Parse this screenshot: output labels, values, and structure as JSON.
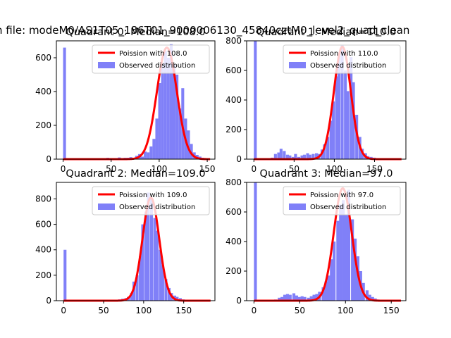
{
  "figure": {
    "suptitle": "n file: modeM0/AS1T05_186T01_9000006130_45840cztM0_level2_quad_clean"
  },
  "chart_data": [
    {
      "type": "bar",
      "title": "Quadrant 0: Median=108.0",
      "xlim": [
        -7,
        158
      ],
      "ylim": [
        0,
        700
      ],
      "xticks": [
        0,
        50,
        100,
        150
      ],
      "yticks": [
        0,
        200,
        400,
        600
      ],
      "bin_width": 3,
      "median": 108.0,
      "series": [
        {
          "name": "Observed distribution",
          "color": "#8080f8",
          "bins": [
            [
              0,
              660
            ],
            [
              39,
              5
            ],
            [
              45,
              8
            ],
            [
              51,
              5
            ],
            [
              57,
              10
            ],
            [
              63,
              8
            ],
            [
              66,
              8
            ],
            [
              69,
              12
            ],
            [
              72,
              8
            ],
            [
              75,
              20
            ],
            [
              78,
              30
            ],
            [
              81,
              15
            ],
            [
              84,
              45
            ],
            [
              87,
              40
            ],
            [
              90,
              75
            ],
            [
              93,
              120
            ],
            [
              96,
              240
            ],
            [
              99,
              450
            ],
            [
              102,
              570
            ],
            [
              105,
              640
            ],
            [
              108,
              600
            ],
            [
              111,
              680
            ],
            [
              114,
              560
            ],
            [
              117,
              500
            ],
            [
              120,
              300
            ],
            [
              123,
              420
            ],
            [
              126,
              240
            ],
            [
              129,
              170
            ],
            [
              132,
              90
            ],
            [
              135,
              40
            ],
            [
              138,
              25
            ],
            [
              141,
              15
            ],
            [
              144,
              8
            ],
            [
              147,
              5
            ],
            [
              150,
              3
            ],
            [
              153,
              2
            ]
          ]
        },
        {
          "name": "Poission with 108.0",
          "color": "#ff0000",
          "type": "line",
          "peak": 660,
          "sigma": 10.4
        }
      ],
      "legend": "top-right"
    },
    {
      "type": "bar",
      "title": "Quadrant 1: Median=110.0",
      "xlim": [
        -9,
        189
      ],
      "ylim": [
        0,
        800
      ],
      "xticks": [
        0,
        50,
        100,
        150
      ],
      "yticks": [
        0,
        200,
        400,
        600,
        800
      ],
      "bin_width": 3.6,
      "median": 110.0,
      "series": [
        {
          "name": "Observed distribution",
          "color": "#8080f8",
          "bins": [
            [
              0,
              800
            ],
            [
              21,
              10
            ],
            [
              25,
              35
            ],
            [
              29,
              45
            ],
            [
              32,
              70
            ],
            [
              36,
              55
            ],
            [
              40,
              30
            ],
            [
              43,
              25
            ],
            [
              47,
              15
            ],
            [
              50,
              35
            ],
            [
              54,
              15
            ],
            [
              58,
              25
            ],
            [
              61,
              30
            ],
            [
              65,
              40
            ],
            [
              68,
              30
            ],
            [
              72,
              35
            ],
            [
              76,
              40
            ],
            [
              79,
              35
            ],
            [
              83,
              65
            ],
            [
              86,
              100
            ],
            [
              90,
              150
            ],
            [
              94,
              260
            ],
            [
              97,
              390
            ],
            [
              101,
              560
            ],
            [
              104,
              700
            ],
            [
              108,
              770
            ],
            [
              112,
              600
            ],
            [
              115,
              460
            ],
            [
              119,
              690
            ],
            [
              122,
              520
            ],
            [
              126,
              300
            ],
            [
              130,
              150
            ],
            [
              133,
              70
            ],
            [
              137,
              40
            ],
            [
              140,
              20
            ],
            [
              144,
              15
            ],
            [
              148,
              10
            ],
            [
              151,
              5
            ],
            [
              155,
              3
            ],
            [
              158,
              2
            ]
          ]
        },
        {
          "name": "Poission with 110.0",
          "color": "#ff0000",
          "type": "line",
          "peak": 760,
          "sigma": 10.5
        }
      ],
      "legend": "top-right"
    },
    {
      "type": "bar",
      "title": "Quadrant 2: Median=109.0",
      "xlim": [
        -9,
        189
      ],
      "ylim": [
        0,
        930
      ],
      "xticks": [
        0,
        50,
        100,
        150
      ],
      "yticks": [
        0,
        200,
        400,
        600,
        800
      ],
      "bin_width": 3.6,
      "median": 109.0,
      "series": [
        {
          "name": "Observed distribution",
          "color": "#8080f8",
          "bins": [
            [
              0,
              400
            ],
            [
              54,
              5
            ],
            [
              61,
              5
            ],
            [
              65,
              8
            ],
            [
              68,
              10
            ],
            [
              72,
              15
            ],
            [
              76,
              20
            ],
            [
              79,
              30
            ],
            [
              83,
              60
            ],
            [
              86,
              150
            ],
            [
              90,
              200
            ],
            [
              94,
              350
            ],
            [
              97,
              600
            ],
            [
              101,
              700
            ],
            [
              104,
              850
            ],
            [
              108,
              800
            ],
            [
              112,
              650
            ],
            [
              115,
              550
            ],
            [
              119,
              400
            ],
            [
              122,
              280
            ],
            [
              126,
              170
            ],
            [
              130,
              100
            ],
            [
              133,
              60
            ],
            [
              137,
              40
            ],
            [
              140,
              30
            ],
            [
              144,
              20
            ],
            [
              148,
              10
            ],
            [
              151,
              5
            ],
            [
              155,
              3
            ],
            [
              158,
              2
            ]
          ]
        },
        {
          "name": "Poission with 109.0",
          "color": "#ff0000",
          "type": "line",
          "peak": 810,
          "sigma": 10.4
        }
      ],
      "legend": "top-right"
    },
    {
      "type": "bar",
      "title": "Quadrant 3: Median=97.0",
      "xlim": [
        -8,
        166
      ],
      "ylim": [
        0,
        800
      ],
      "xticks": [
        0,
        50,
        100,
        150
      ],
      "yticks": [
        0,
        200,
        400,
        600,
        800
      ],
      "bin_width": 3.2,
      "median": 97.0,
      "series": [
        {
          "name": "Observed distribution",
          "color": "#8080f8",
          "bins": [
            [
              0,
              800
            ],
            [
              22,
              8
            ],
            [
              26,
              20
            ],
            [
              29,
              25
            ],
            [
              32,
              40
            ],
            [
              35,
              45
            ],
            [
              38,
              40
            ],
            [
              42,
              50
            ],
            [
              45,
              35
            ],
            [
              48,
              25
            ],
            [
              51,
              30
            ],
            [
              54,
              25
            ],
            [
              58,
              20
            ],
            [
              61,
              30
            ],
            [
              64,
              40
            ],
            [
              67,
              45
            ],
            [
              70,
              60
            ],
            [
              74,
              90
            ],
            [
              77,
              130
            ],
            [
              80,
              170
            ],
            [
              83,
              280
            ],
            [
              86,
              400
            ],
            [
              90,
              540
            ],
            [
              93,
              650
            ],
            [
              96,
              680
            ],
            [
              99,
              580
            ],
            [
              102,
              750
            ],
            [
              106,
              550
            ],
            [
              109,
              420
            ],
            [
              112,
              300
            ],
            [
              115,
              200
            ],
            [
              118,
              120
            ],
            [
              122,
              70
            ],
            [
              125,
              40
            ],
            [
              128,
              25
            ],
            [
              131,
              15
            ],
            [
              134,
              8
            ],
            [
              138,
              5
            ],
            [
              141,
              3
            ],
            [
              144,
              2
            ],
            [
              147,
              1
            ]
          ]
        },
        {
          "name": "Poission with 97.0",
          "color": "#ff0000",
          "type": "line",
          "peak": 760,
          "sigma": 9.8
        }
      ],
      "legend": "top-right"
    }
  ]
}
